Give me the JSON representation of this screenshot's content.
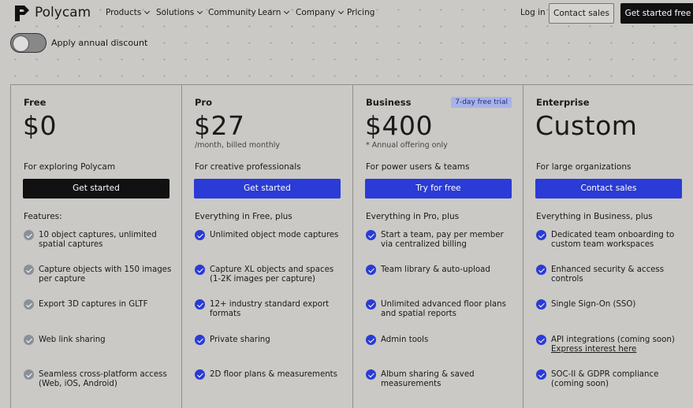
{
  "nav": {
    "logo": "Polycam",
    "links": [
      {
        "label": "Products",
        "dropdown": true
      },
      {
        "label": "Solutions",
        "dropdown": true
      },
      {
        "label": "Community",
        "dropdown": false
      },
      {
        "label": "Learn",
        "dropdown": true
      },
      {
        "label": "Company",
        "dropdown": true
      },
      {
        "label": "Pricing",
        "dropdown": false
      }
    ],
    "login": "Log in",
    "contact": "Contact sales",
    "cta": "Get started free"
  },
  "toggle": {
    "label": "Apply annual discount",
    "on": false
  },
  "plans": [
    {
      "name": "Free",
      "price": "$0",
      "description": "For exploring Polycam",
      "button": "Get started",
      "button_style": "dark",
      "icon_color": "#8a9098",
      "features_heading": "Features:",
      "features": [
        {
          "text": "10 object captures, unlimited spatial captures"
        },
        {
          "text": "Capture objects with 150 images per capture"
        },
        {
          "text": "Export 3D captures in GLTF"
        },
        {
          "text": "Web link sharing"
        },
        {
          "text": "Seamless cross-platform access (Web, iOS, Android)"
        }
      ]
    },
    {
      "name": "Pro",
      "price": "$27",
      "price_note": "/month, billed monthly",
      "description": "For creative professionals",
      "button": "Get started",
      "button_style": "blue",
      "icon_color": "#2a3bd6",
      "features_heading": "Everything in Free, plus",
      "features": [
        {
          "text": "Unlimited object mode captures"
        },
        {
          "text": "Capture XL objects and spaces (1-2K images per capture)"
        },
        {
          "text": "12+ industry standard export formats"
        },
        {
          "text": "Private sharing"
        },
        {
          "text": "2D floor plans & measurements"
        }
      ]
    },
    {
      "name": "Business",
      "badge": "7-day free trial",
      "price": "$400",
      "price_note": "* Annual offering only",
      "description": "For power users & teams",
      "button": "Try for free",
      "button_style": "blue",
      "icon_color": "#2a3bd6",
      "features_heading": "Everything in Pro, plus",
      "features": [
        {
          "text": "Start a team, pay per member via centralized billing"
        },
        {
          "text": "Team library & auto-upload"
        },
        {
          "text": "Unlimited advanced floor plans and spatial reports"
        },
        {
          "text": "Admin tools"
        },
        {
          "text": "Album sharing & saved measurements"
        }
      ]
    },
    {
      "name": "Enterprise",
      "price": "Custom",
      "description": "For large organizations",
      "button": "Contact sales",
      "button_style": "blue",
      "icon_color": "#2a3bd6",
      "features_heading": "Everything in Business, plus",
      "features": [
        {
          "text": "Dedicated team onboarding to custom team workspaces"
        },
        {
          "text": "Enhanced security & access controls"
        },
        {
          "text": "Single Sign-On (SSO)"
        },
        {
          "text": "API integrations (coming soon)",
          "link": "Express interest here"
        },
        {
          "text": "SOC-II & GDPR compliance (coming soon)"
        }
      ]
    }
  ]
}
